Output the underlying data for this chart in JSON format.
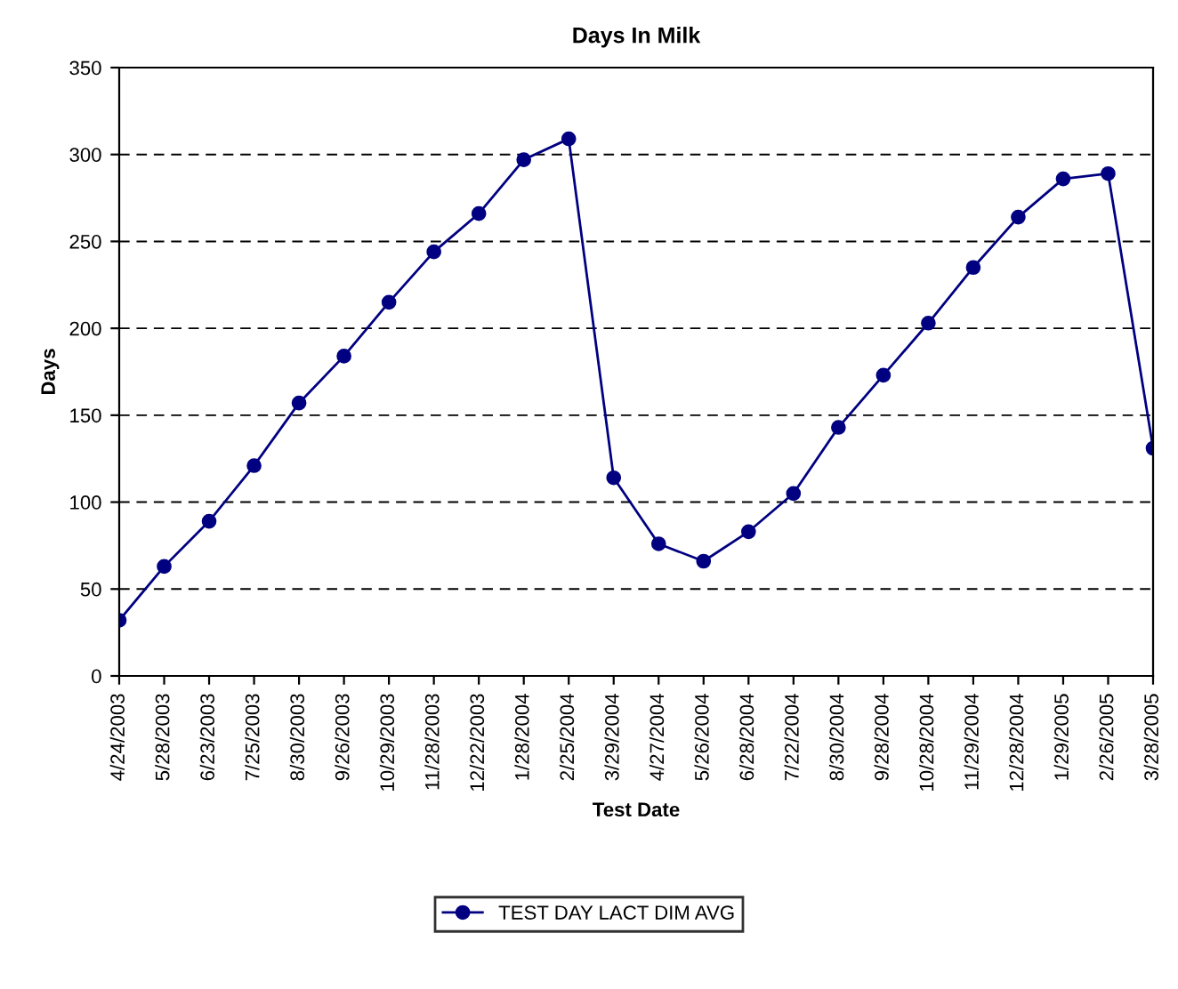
{
  "chart_data": {
    "type": "line",
    "title": "Days In Milk",
    "xlabel": "Test Date",
    "ylabel": "Days",
    "categories": [
      "4/24/2003",
      "5/28/2003",
      "6/23/2003",
      "7/25/2003",
      "8/30/2003",
      "9/26/2003",
      "10/29/2003",
      "11/28/2003",
      "12/22/2003",
      "1/28/2004",
      "2/25/2004",
      "3/29/2004",
      "4/27/2004",
      "5/26/2004",
      "6/28/2004",
      "7/22/2004",
      "8/30/2004",
      "9/28/2004",
      "10/28/2004",
      "11/29/2004",
      "12/28/2004",
      "1/29/2005",
      "2/26/2005",
      "3/28/2005"
    ],
    "series": [
      {
        "name": "TEST DAY LACT DIM AVG",
        "color": "#000080",
        "values": [
          32,
          63,
          89,
          121,
          157,
          184,
          215,
          244,
          266,
          297,
          309,
          114,
          76,
          66,
          83,
          105,
          143,
          173,
          203,
          235,
          264,
          286,
          289,
          131
        ]
      }
    ],
    "ylim": [
      0,
      350
    ],
    "yticks": [
      0,
      50,
      100,
      150,
      200,
      250,
      300,
      350
    ],
    "grid": "y",
    "legend": "bottom",
    "marker": "circle",
    "line_style": "solid"
  }
}
